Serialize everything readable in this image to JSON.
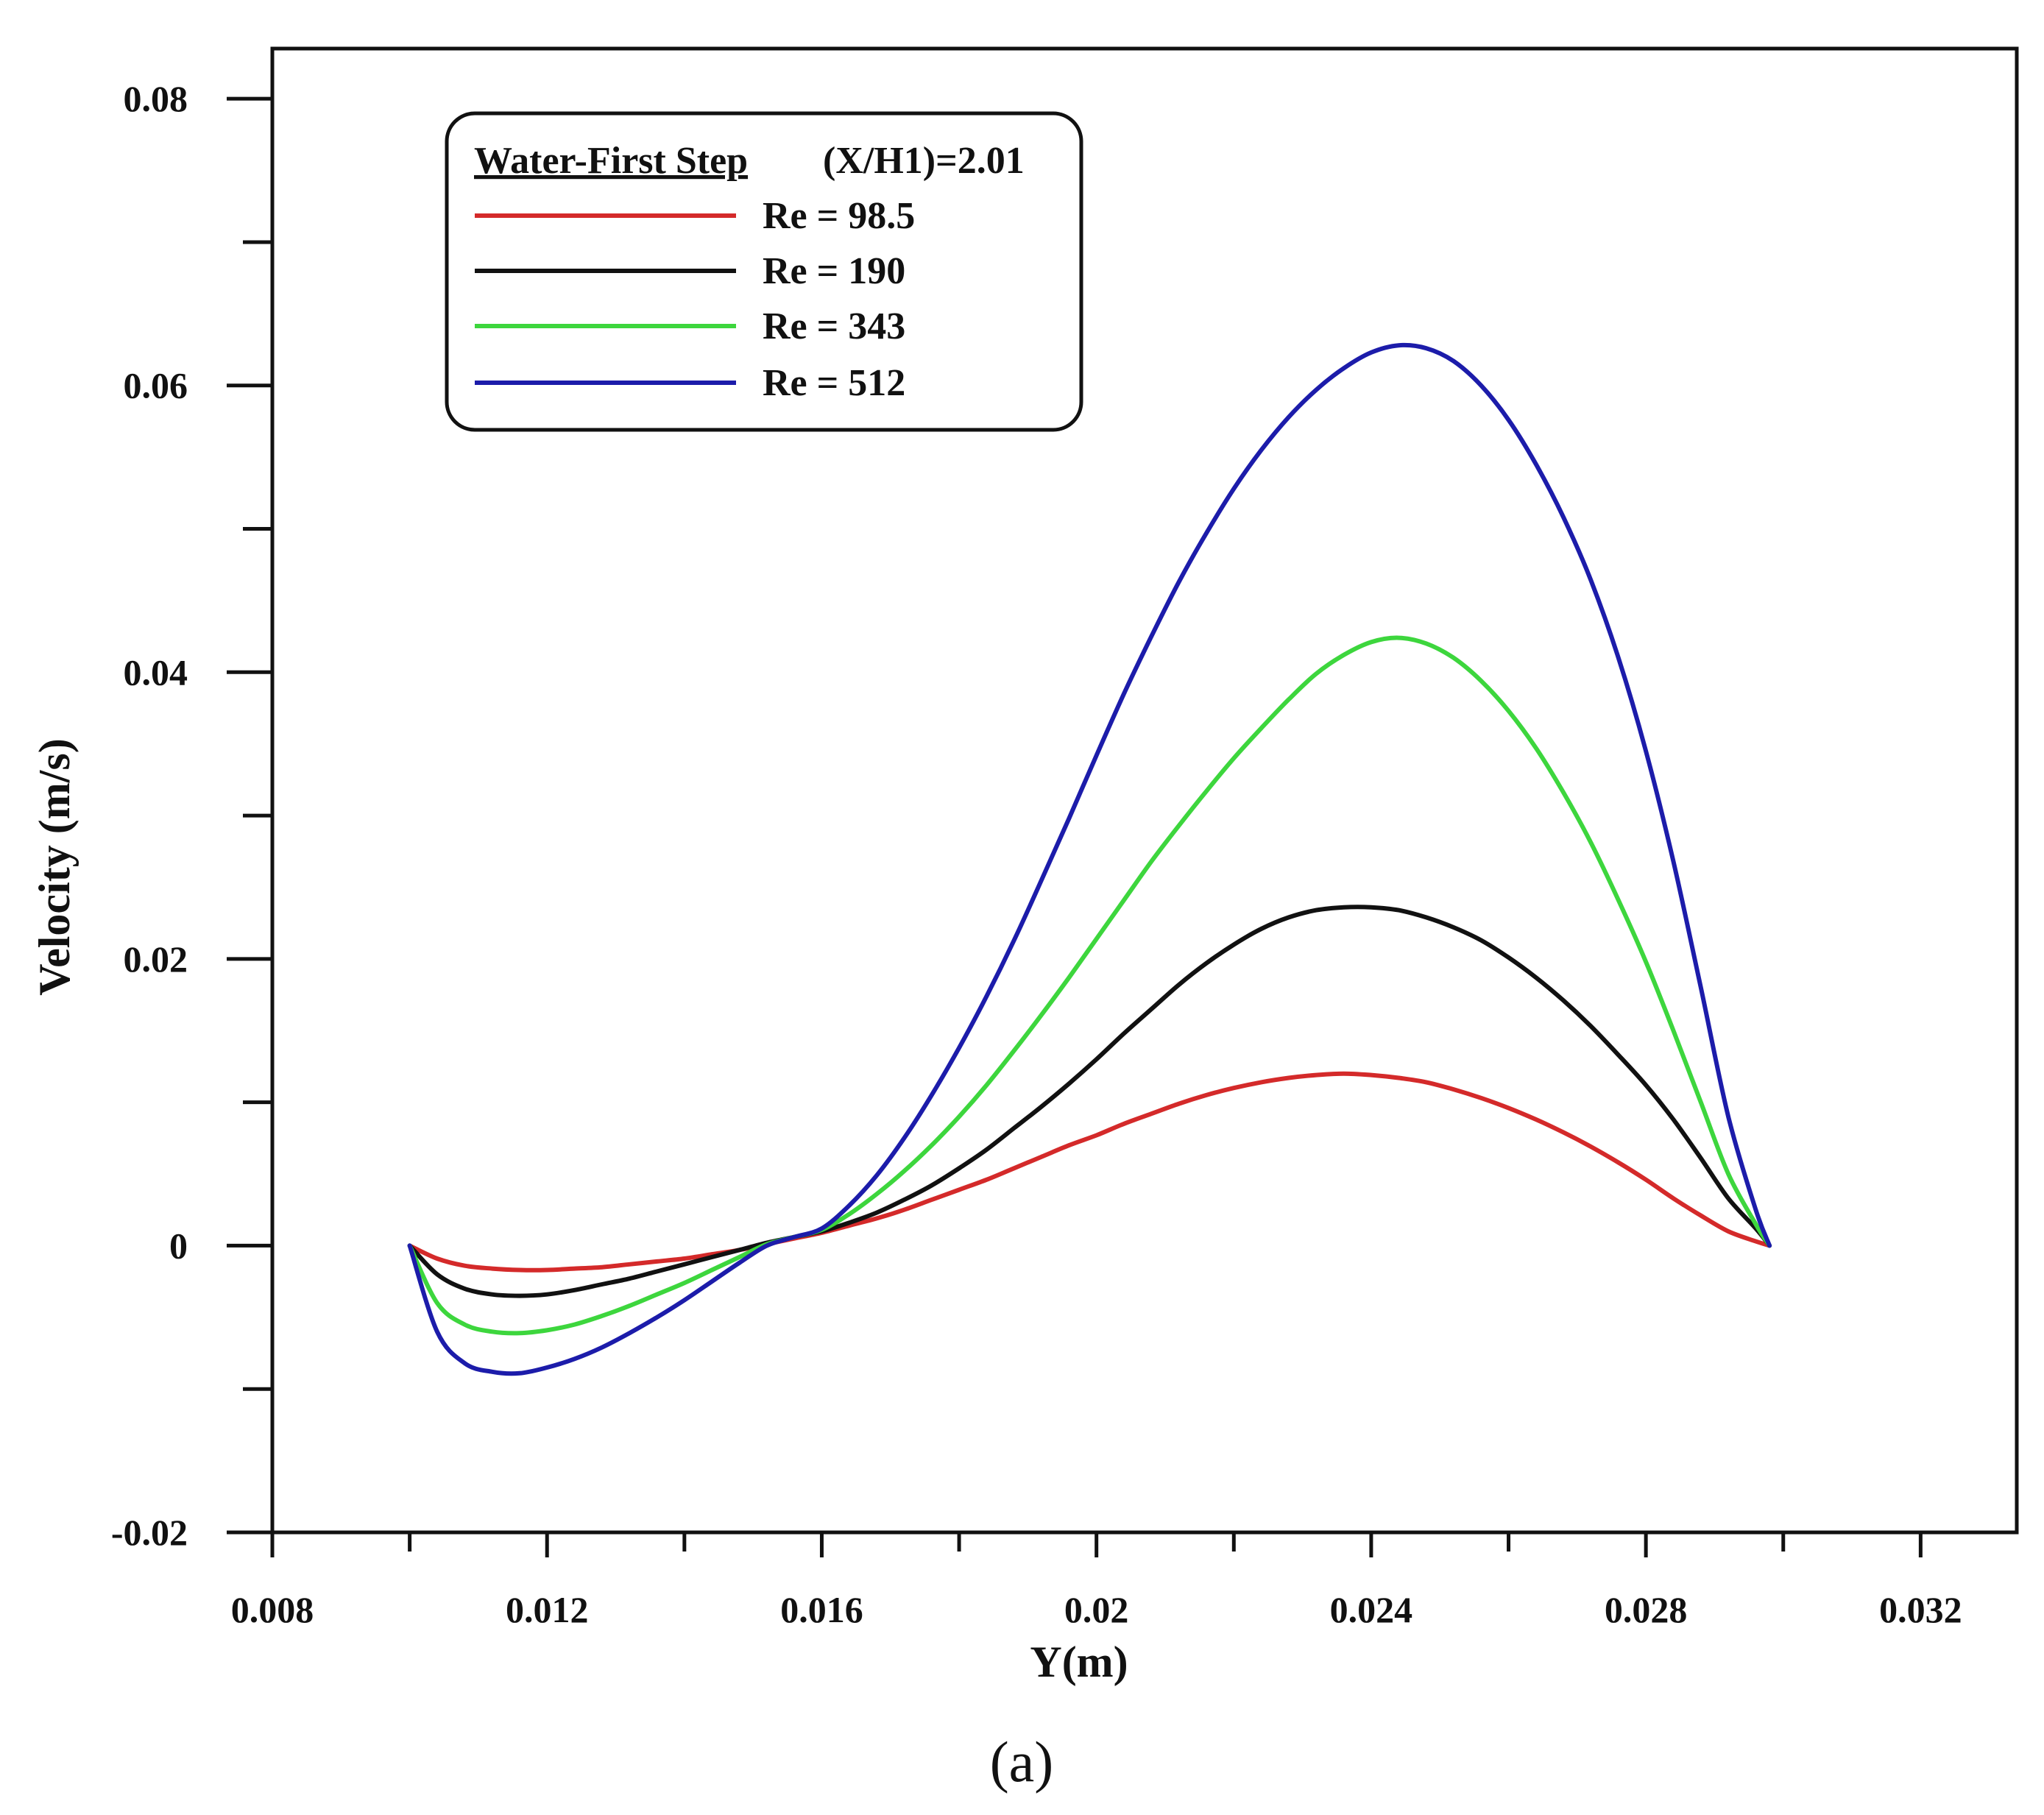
{
  "chart_data": {
    "type": "line",
    "title": "",
    "xlabel": "Y(m)",
    "ylabel": "Velocity (m/s)",
    "xlim": [
      0.008,
      0.0334
    ],
    "ylim": [
      -0.02,
      0.0835
    ],
    "x_ticks": [
      0.008,
      0.012,
      0.016,
      0.02,
      0.024,
      0.028,
      0.032
    ],
    "x_tick_labels": [
      "0.008",
      "0.012",
      "0.016",
      "0.02",
      "0.024",
      "0.028",
      "0.032"
    ],
    "x_minor_ticks": [
      0.01,
      0.014,
      0.018,
      0.022,
      0.026,
      0.03
    ],
    "y_ticks": [
      -0.02,
      0,
      0.02,
      0.04,
      0.06,
      0.08
    ],
    "y_tick_labels": [
      "-0.02",
      "0",
      "0.02",
      "0.04",
      "0.06",
      "0.08"
    ],
    "y_minor_ticks": [
      -0.01,
      0.01,
      0.03,
      0.05,
      0.07
    ],
    "grid": false,
    "legend": {
      "position": "top-left",
      "title": "Water-First Step",
      "subtitle": "(X/H1)=2.01"
    },
    "series": [
      {
        "name": "Re = 98.5",
        "color": "#d42a2a",
        "x": [
          0.01,
          0.0104,
          0.0108,
          0.0112,
          0.0116,
          0.012,
          0.0124,
          0.0128,
          0.0132,
          0.0136,
          0.014,
          0.0144,
          0.0148,
          0.0152,
          0.0156,
          0.016,
          0.0164,
          0.0168,
          0.0172,
          0.0176,
          0.018,
          0.0184,
          0.0188,
          0.0192,
          0.0196,
          0.02,
          0.0204,
          0.0208,
          0.0212,
          0.0216,
          0.022,
          0.0224,
          0.0228,
          0.0232,
          0.0236,
          0.024,
          0.0244,
          0.0248,
          0.0252,
          0.0256,
          0.026,
          0.0264,
          0.0268,
          0.0272,
          0.0276,
          0.028,
          0.0284,
          0.0288,
          0.0292,
          0.0296,
          0.0298
        ],
        "values": [
          0,
          -0.0009,
          -0.0014,
          -0.0016,
          -0.0017,
          -0.0017,
          -0.0016,
          -0.0015,
          -0.0013,
          -0.0011,
          -0.0009,
          -0.0006,
          -0.0003,
          0.0001,
          0.0005,
          0.0009,
          0.0014,
          0.0019,
          0.0025,
          0.0032,
          0.0039,
          0.0046,
          0.0054,
          0.0062,
          0.007,
          0.0077,
          0.0085,
          0.0092,
          0.0099,
          0.0105,
          0.011,
          0.0114,
          0.0117,
          0.0119,
          0.012,
          0.0119,
          0.0117,
          0.0114,
          0.0109,
          0.0103,
          0.0096,
          0.0088,
          0.0079,
          0.0069,
          0.0058,
          0.0046,
          0.0033,
          0.0021,
          0.001,
          0.0003,
          0
        ]
      },
      {
        "name": "Re = 190",
        "color": "#111111",
        "x": [
          0.01,
          0.0104,
          0.0108,
          0.0112,
          0.0116,
          0.012,
          0.0124,
          0.0128,
          0.0132,
          0.0136,
          0.014,
          0.0144,
          0.0148,
          0.0152,
          0.0156,
          0.016,
          0.0164,
          0.0168,
          0.0172,
          0.0176,
          0.018,
          0.0184,
          0.0188,
          0.0192,
          0.0196,
          0.02,
          0.0204,
          0.0208,
          0.0212,
          0.0216,
          0.022,
          0.0224,
          0.0228,
          0.0232,
          0.0236,
          0.024,
          0.0244,
          0.0248,
          0.0252,
          0.0256,
          0.026,
          0.0264,
          0.0268,
          0.0272,
          0.0276,
          0.028,
          0.0284,
          0.0288,
          0.0292,
          0.0296,
          0.0298
        ],
        "values": [
          0,
          -0.002,
          -0.003,
          -0.0034,
          -0.0035,
          -0.0034,
          -0.0031,
          -0.0027,
          -0.0023,
          -0.0018,
          -0.0013,
          -0.0008,
          -0.0003,
          0.0002,
          0.0006,
          0.001,
          0.0016,
          0.0023,
          0.0032,
          0.0042,
          0.0054,
          0.0067,
          0.0082,
          0.0097,
          0.0113,
          0.013,
          0.0148,
          0.0165,
          0.0182,
          0.0197,
          0.021,
          0.0221,
          0.0229,
          0.0234,
          0.0236,
          0.0236,
          0.0234,
          0.0229,
          0.0222,
          0.0213,
          0.0201,
          0.0187,
          0.0171,
          0.0153,
          0.0133,
          0.0112,
          0.0088,
          0.0061,
          0.0033,
          0.0012,
          0
        ]
      },
      {
        "name": "Re = 343",
        "color": "#3dd63d",
        "x": [
          0.01,
          0.0104,
          0.0108,
          0.0112,
          0.0116,
          0.012,
          0.0124,
          0.0128,
          0.0132,
          0.0136,
          0.014,
          0.0144,
          0.0148,
          0.0152,
          0.0156,
          0.016,
          0.0164,
          0.0168,
          0.0172,
          0.0176,
          0.018,
          0.0184,
          0.0188,
          0.0192,
          0.0196,
          0.02,
          0.0204,
          0.0208,
          0.0212,
          0.0216,
          0.022,
          0.0224,
          0.0228,
          0.0232,
          0.0236,
          0.024,
          0.0244,
          0.0248,
          0.0252,
          0.0256,
          0.026,
          0.0264,
          0.0268,
          0.0272,
          0.0276,
          0.028,
          0.0284,
          0.0288,
          0.0292,
          0.0296,
          0.0298
        ],
        "values": [
          0,
          -0.004,
          -0.0055,
          -0.006,
          -0.0061,
          -0.0059,
          -0.0055,
          -0.0049,
          -0.0042,
          -0.0034,
          -0.0026,
          -0.0017,
          -0.0008,
          0.0001,
          0.0006,
          0.0011,
          0.0022,
          0.0036,
          0.0052,
          0.007,
          0.009,
          0.0112,
          0.0136,
          0.0161,
          0.0187,
          0.0214,
          0.0241,
          0.0268,
          0.0293,
          0.0317,
          0.034,
          0.0361,
          0.0381,
          0.0399,
          0.0412,
          0.0421,
          0.0424,
          0.042,
          0.041,
          0.0394,
          0.0373,
          0.0347,
          0.0316,
          0.0281,
          0.0241,
          0.0198,
          0.015,
          0.01,
          0.005,
          0.0015,
          0
        ]
      },
      {
        "name": "Re = 512",
        "color": "#1c1caa",
        "x": [
          0.01,
          0.0104,
          0.0108,
          0.0112,
          0.0116,
          0.012,
          0.0124,
          0.0128,
          0.0132,
          0.0136,
          0.014,
          0.0144,
          0.0148,
          0.0152,
          0.0156,
          0.016,
          0.0164,
          0.0168,
          0.0172,
          0.0176,
          0.018,
          0.0184,
          0.0188,
          0.0192,
          0.0196,
          0.02,
          0.0204,
          0.0208,
          0.0212,
          0.0216,
          0.022,
          0.0224,
          0.0228,
          0.0232,
          0.0236,
          0.024,
          0.0244,
          0.0248,
          0.0252,
          0.0256,
          0.026,
          0.0264,
          0.0268,
          0.0272,
          0.0276,
          0.028,
          0.0284,
          0.0288,
          0.0292,
          0.0296,
          0.0298
        ],
        "values": [
          0,
          -0.006,
          -0.0082,
          -0.0088,
          -0.0089,
          -0.0085,
          -0.0079,
          -0.0071,
          -0.0061,
          -0.005,
          -0.0038,
          -0.0025,
          -0.0012,
          0.0,
          0.0006,
          0.0012,
          0.0028,
          0.0049,
          0.0075,
          0.0105,
          0.0138,
          0.0174,
          0.0213,
          0.0255,
          0.0298,
          0.0342,
          0.0385,
          0.0425,
          0.0463,
          0.0497,
          0.0528,
          0.0555,
          0.0578,
          0.0597,
          0.0612,
          0.0623,
          0.0628,
          0.0626,
          0.0617,
          0.06,
          0.0576,
          0.0545,
          0.0508,
          0.0464,
          0.041,
          0.0345,
          0.0268,
          0.018,
          0.009,
          0.0025,
          0
        ]
      }
    ]
  },
  "caption": "(a)"
}
